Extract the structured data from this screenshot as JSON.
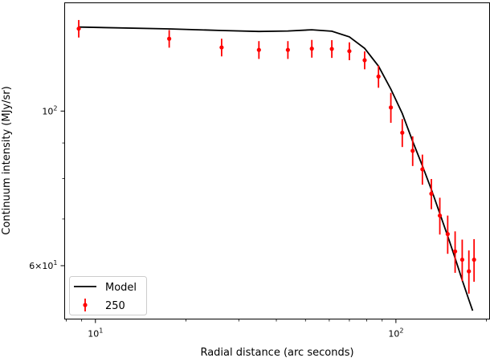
{
  "chart_data": {
    "type": "scatter",
    "title": "",
    "xlabel": "Radial distance (arc seconds)",
    "ylabel": "Continuum intensity (MJy/sr)",
    "xscale": "log",
    "yscale": "log",
    "xlim": [
      7.9,
      205
    ],
    "ylim": [
      50.3,
      143
    ],
    "grid": false,
    "legend_position": "lower-left",
    "x_ticks": [
      {
        "value": 10,
        "label": "10",
        "sup": "1"
      },
      {
        "value": 100,
        "label": "10",
        "sup": "2"
      }
    ],
    "y_ticks": [
      {
        "value": 100,
        "label": "10",
        "sup": "2"
      },
      {
        "value": 60,
        "label": "6×10",
        "sup": "1"
      }
    ],
    "series": [
      {
        "name": "Model",
        "kind": "line",
        "color": "#000000",
        "points": [
          [
            8.8,
            132.0
          ],
          [
            17.6,
            131.2
          ],
          [
            26.3,
            130.5
          ],
          [
            35.0,
            130.1
          ],
          [
            43.7,
            130.3
          ],
          [
            52.5,
            130.8
          ],
          [
            61.2,
            130.2
          ],
          [
            70.0,
            127.8
          ],
          [
            78.7,
            123.0
          ],
          [
            87.5,
            116.0
          ],
          [
            96.2,
            107.5
          ],
          [
            105.0,
            99.2
          ],
          [
            113.7,
            90.5
          ],
          [
            122.5,
            83.5
          ],
          [
            131.2,
            77.2
          ],
          [
            140.0,
            71.3
          ],
          [
            148.7,
            66.2
          ],
          [
            157.4,
            61.5
          ],
          [
            166.2,
            57.2
          ],
          [
            174.9,
            53.6
          ],
          [
            180.0,
            51.7
          ]
        ]
      },
      {
        "name": "250",
        "kind": "errorbar",
        "color": "#ff0000",
        "points": [
          {
            "x": 8.8,
            "y": 131.3,
            "err": 3.8
          },
          {
            "x": 17.6,
            "y": 127.0,
            "err": 3.7
          },
          {
            "x": 26.3,
            "y": 123.4,
            "err": 3.6
          },
          {
            "x": 35.0,
            "y": 122.4,
            "err": 3.6
          },
          {
            "x": 43.7,
            "y": 122.4,
            "err": 3.6
          },
          {
            "x": 52.5,
            "y": 122.9,
            "err": 3.6
          },
          {
            "x": 61.2,
            "y": 122.8,
            "err": 3.6
          },
          {
            "x": 70.0,
            "y": 121.9,
            "err": 3.6
          },
          {
            "x": 78.7,
            "y": 118.3,
            "err": 3.5
          },
          {
            "x": 87.5,
            "y": 112.1,
            "err": 4.1
          },
          {
            "x": 96.2,
            "y": 101.2,
            "err": 5.0
          },
          {
            "x": 105.0,
            "y": 93.1,
            "err": 4.3
          },
          {
            "x": 113.7,
            "y": 87.7,
            "err": 4.3
          },
          {
            "x": 122.5,
            "y": 82.5,
            "err": 4.1
          },
          {
            "x": 131.2,
            "y": 76.1,
            "err": 3.8
          },
          {
            "x": 140.0,
            "y": 70.8,
            "err": 4.3
          },
          {
            "x": 148.7,
            "y": 66.6,
            "err": 4.2
          },
          {
            "x": 157.4,
            "y": 62.9,
            "err": 4.3
          },
          {
            "x": 166.2,
            "y": 61.2,
            "err": 4.2
          },
          {
            "x": 174.9,
            "y": 58.9,
            "err": 4.2
          },
          {
            "x": 182.0,
            "y": 61.2,
            "err": 4.3
          }
        ]
      }
    ]
  }
}
